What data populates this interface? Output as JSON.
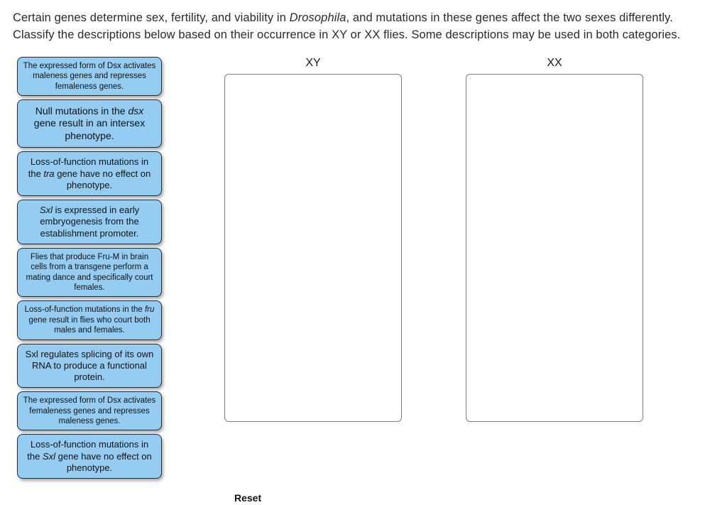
{
  "question_html": "Certain genes determine sex, fertility, and viability in <em>Drosophila</em>, and mutations in these genes affect the two sexes differently. Classify the descriptions below based on their occurrence in XY or XX flies. Some descriptions may be used in both categories.",
  "columns": {
    "xy": {
      "label": "XY"
    },
    "xx": {
      "label": "XX"
    }
  },
  "cards": [
    {
      "size": "sm",
      "html": "The expressed form of Dsx activates maleness genes and represses femaleness genes."
    },
    {
      "size": "lg",
      "html": "Null mutations in the <em>dsx</em> gene result in an intersex phenotype."
    },
    {
      "size": "md",
      "html": "Loss-of-function mutations in the <em>tra</em> gene have no effect on phenotype."
    },
    {
      "size": "md",
      "html": "<em>Sxl</em> is expressed in early embryogenesis from the establishment promoter."
    },
    {
      "size": "sm",
      "html": "Flies that produce Fru-M in brain cells from a transgene perform a mating dance and specifically court females."
    },
    {
      "size": "sm",
      "html": "Loss-of-function mutations in the <em>fru</em> gene result in flies who court both males and females."
    },
    {
      "size": "md",
      "html": "Sxl regulates splicing of its own RNA to produce a functional protein."
    },
    {
      "size": "sm",
      "html": "The expressed form of Dsx activates femaleness genes and represses maleness genes."
    },
    {
      "size": "md",
      "html": "Loss-of-function mutations in the <em>Sxl</em> gene have no effect on phenotype."
    }
  ],
  "reset_label": "Reset",
  "colors": {
    "card_bg": "#95cdf2",
    "card_border": "#2b2b2b",
    "drop_border": "#7d7d7d",
    "text": "#222222",
    "bg": "#ffffff"
  }
}
